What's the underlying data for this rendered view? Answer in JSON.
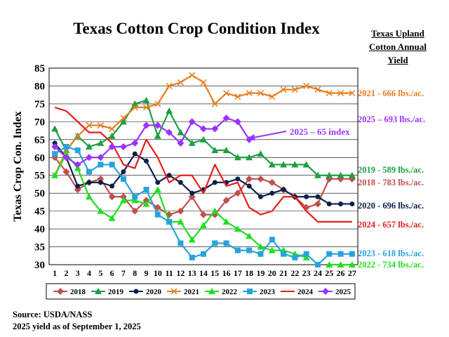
{
  "title": "Texas Cotton Crop Condition Index",
  "side_title_lines": [
    "Texas Upland",
    "Cotton Annual",
    "Yield"
  ],
  "source_lines": [
    "Source:  USDA/NASS",
    "2025 yield as of September 1, 2025"
  ],
  "annotation": "2025 – 65 index",
  "yield_labels": [
    {
      "text": "2021 - 666 lbs./ac.",
      "color": "#e87d1e"
    },
    {
      "text": "2025 – 693 lbs./ac.",
      "color": "#9933ff"
    },
    {
      "text": "2019 - 589 lbs./ac.",
      "color": "#1e9e40"
    },
    {
      "text": "2018 - 783 lbs./ac.",
      "color": "#c0504d"
    },
    {
      "text": "2020 - 696 lbs./ac.",
      "color": "#0d1f4a"
    },
    {
      "text": "2024 - 657 lbs./ac.",
      "color": "#e61e1e"
    },
    {
      "text": "2023 - 618 lbs./ac.",
      "color": "#27a3dc"
    },
    {
      "text": "2022 - 734 lbs./ac.",
      "color": "#22dd22"
    }
  ],
  "chart_data": {
    "type": "line",
    "ylabel": "Texas Crop Con. Index",
    "xlabel": "",
    "x": [
      1,
      2,
      3,
      4,
      5,
      6,
      7,
      8,
      9,
      10,
      11,
      12,
      13,
      14,
      15,
      16,
      17,
      18,
      19,
      20,
      21,
      22,
      23,
      24,
      25,
      26,
      27
    ],
    "ylim": [
      30,
      85
    ],
    "yticks": [
      30,
      35,
      40,
      45,
      50,
      55,
      60,
      65,
      70,
      75,
      80,
      85
    ],
    "grid": true,
    "legend_position": "bottom",
    "series": [
      {
        "name": "2018",
        "color": "#c0504d",
        "marker": "diamond",
        "values": [
          60,
          56,
          51,
          53,
          54,
          49,
          49,
          45,
          48,
          46,
          44,
          45,
          49,
          44,
          44,
          48,
          50,
          54,
          54,
          53,
          51,
          49,
          46,
          47,
          54,
          54,
          54
        ]
      },
      {
        "name": "2019",
        "color": "#1e9e40",
        "marker": "triangle",
        "values": [
          68,
          62,
          66,
          63,
          64,
          66,
          70,
          75,
          76,
          66,
          73,
          67,
          64,
          65,
          62,
          62,
          60,
          60,
          61,
          58,
          58,
          58,
          58,
          55,
          55,
          55,
          55
        ]
      },
      {
        "name": "2020",
        "color": "#0d1f4a",
        "marker": "circle",
        "values": [
          64,
          60,
          52,
          53,
          53,
          52,
          56,
          61,
          59,
          53,
          55,
          53,
          50,
          51,
          53,
          53,
          54,
          52,
          49,
          50,
          51,
          49,
          49,
          49,
          47,
          47,
          47
        ]
      },
      {
        "name": "2021",
        "color": "#e87d1e",
        "marker": "x",
        "values": [
          55,
          62,
          66,
          69,
          69,
          68,
          71,
          74,
          74,
          75,
          80,
          81,
          83,
          81,
          75,
          78,
          77,
          78,
          78,
          77,
          79,
          79,
          80,
          79,
          78,
          78,
          78
        ]
      },
      {
        "name": "2022",
        "color": "#22dd22",
        "marker": "triangle",
        "values": [
          55,
          61,
          57,
          49,
          45,
          43,
          48,
          48,
          47,
          51,
          42,
          42,
          37,
          41,
          45,
          42,
          40,
          38,
          35,
          34,
          34,
          33,
          32,
          null,
          30,
          30,
          30
        ]
      },
      {
        "name": "2023",
        "color": "#27a3dc",
        "marker": "square",
        "values": [
          61,
          63,
          62,
          56,
          58,
          58,
          54,
          49,
          51,
          44,
          42,
          36,
          32,
          33,
          36,
          36,
          34,
          34,
          33,
          37,
          33,
          32,
          33,
          30,
          33,
          33,
          33
        ]
      },
      {
        "name": "2024",
        "color": "#e61e1e",
        "marker": "none",
        "values": [
          74,
          73,
          70,
          67,
          67,
          64,
          58,
          57,
          65,
          60,
          53,
          55,
          55,
          50,
          58,
          52,
          53,
          46,
          44,
          45,
          49,
          49,
          45,
          42,
          42,
          42,
          42
        ]
      },
      {
        "name": "2025",
        "color": "#9933ff",
        "marker": "diamond",
        "values": [
          63,
          60,
          58,
          60,
          60,
          63,
          63,
          64,
          69,
          69,
          67,
          64,
          70,
          68,
          68,
          71,
          70,
          65,
          null,
          null,
          null,
          null,
          null,
          null,
          null,
          null,
          null
        ]
      }
    ]
  }
}
